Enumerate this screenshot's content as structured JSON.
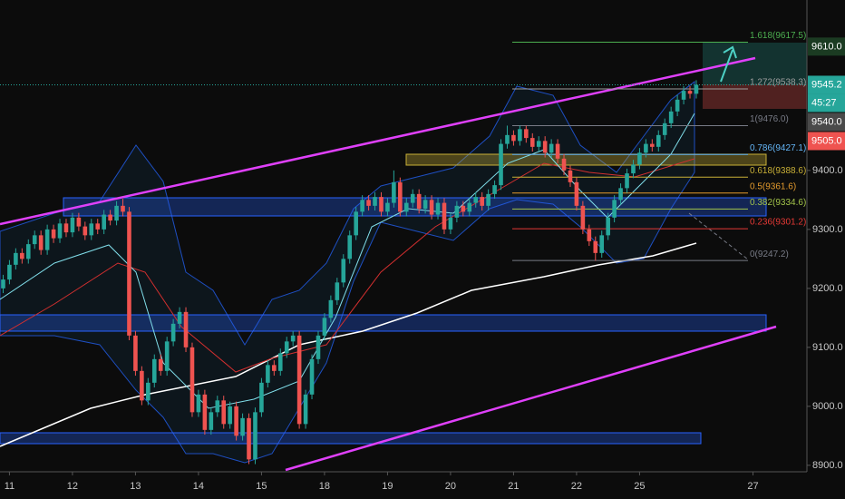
{
  "chart_data": {
    "type": "candlestick",
    "categories": [
      null,
      "11",
      null,
      null,
      null,
      null,
      null,
      null,
      null,
      null,
      null,
      "12",
      null,
      null,
      null,
      null,
      null,
      null,
      null,
      null,
      null,
      "13",
      null,
      null,
      null,
      null,
      null,
      null,
      null,
      null,
      null,
      "14",
      null,
      null,
      null,
      null,
      null,
      null,
      null,
      null,
      null,
      "15",
      null,
      null,
      null,
      null,
      null,
      null,
      null,
      null,
      null,
      "18",
      null,
      null,
      null,
      null,
      null,
      null,
      null,
      null,
      null,
      "19",
      null,
      null,
      null,
      null,
      null,
      null,
      null,
      null,
      null,
      "20",
      null,
      null,
      null,
      null,
      null,
      null,
      null,
      null,
      null,
      "21",
      null,
      null,
      null,
      null,
      null,
      null,
      null,
      null,
      null,
      "22",
      null,
      null,
      null,
      null,
      null,
      null,
      null,
      null,
      null,
      "25",
      null,
      null,
      null,
      null,
      null,
      null,
      null,
      null,
      null,
      null,
      null,
      null,
      null,
      null,
      null,
      null,
      null,
      "27",
      null,
      null,
      null,
      null,
      null,
      null,
      null,
      null
    ],
    "open": [
      9200,
      9215,
      9240,
      9260,
      9250,
      9275,
      9290,
      9265,
      9300,
      9285,
      9310,
      9295,
      9320,
      9305,
      9290,
      9310,
      9300,
      9325,
      9315,
      9340,
      9330,
      9120,
      9060,
      9010,
      9040,
      9080,
      9060,
      9110,
      9140,
      9160,
      9100,
      8990,
      9020,
      8960,
      8990,
      9010,
      8970,
      9000,
      8950,
      8980,
      8910,
      8990,
      9040,
      9070,
      9060,
      9090,
      9110,
      9120,
      8970,
      9020,
      9080,
      9120,
      9150,
      9180,
      9210,
      9250,
      9290,
      9330,
      9350,
      9340,
      9355,
      9330,
      9345,
      9380,
      9330,
      9345,
      9360,
      9335,
      9350,
      9325,
      9345,
      9300,
      9320,
      9340,
      9330,
      9345,
      9355,
      9340,
      9360,
      9375,
      9445,
      9460,
      9450,
      9470,
      9455,
      9440,
      9450,
      9430,
      9445,
      9420,
      9400,
      9380,
      9340,
      9300,
      9280,
      9260,
      9290,
      9320,
      9350,
      9370,
      9395,
      9410,
      9430,
      9445,
      9440,
      9460,
      9480,
      9500,
      9520,
      9535,
      9530,
      null,
      null,
      null,
      null,
      null,
      null,
      null,
      null,
      null,
      null,
      null,
      null,
      null,
      null,
      null,
      null,
      null
    ],
    "high": [
      9223,
      9248,
      9268,
      9268,
      9283,
      9298,
      9298,
      9308,
      9308,
      9318,
      9318,
      9328,
      9328,
      9313,
      9318,
      9318,
      9333,
      9333,
      9348,
      9352,
      9338,
      9128,
      9068,
      9048,
      9088,
      9088,
      9118,
      9148,
      9168,
      9168,
      9108,
      9028,
      9028,
      8998,
      9018,
      9018,
      9008,
      9008,
      8988,
      8988,
      8998,
      9048,
      9078,
      9078,
      9098,
      9118,
      9128,
      9128,
      9028,
      9088,
      9128,
      9158,
      9188,
      9218,
      9258,
      9298,
      9338,
      9358,
      9358,
      9363,
      9363,
      9353,
      9400,
      9388,
      9353,
      9368,
      9368,
      9358,
      9358,
      9353,
      9353,
      9328,
      9348,
      9348,
      9353,
      9363,
      9363,
      9368,
      9383,
      9453,
      9476,
      9468,
      9476,
      9476,
      9463,
      9458,
      9458,
      9453,
      9453,
      9428,
      9408,
      9388,
      9348,
      9308,
      9288,
      9298,
      9328,
      9358,
      9378,
      9403,
      9418,
      9438,
      9453,
      9453,
      9468,
      9488,
      9508,
      9528,
      9543,
      9543,
      9553,
      null,
      null,
      null,
      null,
      null,
      null,
      null,
      null,
      null,
      null,
      null,
      null,
      null,
      null,
      null,
      null,
      null
    ],
    "low": [
      9192,
      9207,
      9232,
      9242,
      9242,
      9267,
      9257,
      9257,
      9277,
      9277,
      9287,
      9287,
      9297,
      9282,
      9282,
      9292,
      9292,
      9307,
      9307,
      9322,
      9112,
      9052,
      9002,
      9002,
      9032,
      9052,
      9052,
      9102,
      9132,
      9092,
      8982,
      8982,
      8952,
      8952,
      8982,
      8962,
      8962,
      8942,
      8942,
      8902,
      8902,
      8982,
      9032,
      9052,
      9052,
      9082,
      9102,
      8962,
      8962,
      9012,
      9072,
      9112,
      9142,
      9172,
      9202,
      9242,
      9282,
      9322,
      9332,
      9332,
      9322,
      9322,
      9337,
      9322,
      9322,
      9337,
      9327,
      9327,
      9317,
      9317,
      9292,
      9292,
      9312,
      9322,
      9322,
      9337,
      9332,
      9332,
      9352,
      9367,
      9437,
      9442,
      9442,
      9447,
      9432,
      9432,
      9422,
      9422,
      9412,
      9392,
      9372,
      9332,
      9292,
      9272,
      9247,
      9252,
      9282,
      9312,
      9342,
      9362,
      9387,
      9402,
      9422,
      9432,
      9432,
      9452,
      9472,
      9492,
      9512,
      9522,
      9522,
      null,
      null,
      null,
      null,
      null,
      null,
      null,
      null,
      null,
      null,
      null,
      null,
      null,
      null,
      null,
      null,
      null
    ],
    "close": [
      9215,
      9240,
      9260,
      9250,
      9275,
      9290,
      9265,
      9300,
      9285,
      9310,
      9295,
      9320,
      9305,
      9290,
      9310,
      9300,
      9325,
      9315,
      9340,
      9330,
      9120,
      9060,
      9010,
      9040,
      9080,
      9060,
      9110,
      9140,
      9160,
      9100,
      8990,
      9020,
      8960,
      8990,
      9010,
      8970,
      9000,
      8950,
      8980,
      8910,
      8990,
      9040,
      9070,
      9060,
      9090,
      9110,
      9120,
      8970,
      9020,
      9080,
      9120,
      9150,
      9180,
      9210,
      9250,
      9290,
      9330,
      9350,
      9340,
      9355,
      9330,
      9345,
      9380,
      9330,
      9345,
      9360,
      9335,
      9350,
      9325,
      9345,
      9300,
      9320,
      9340,
      9330,
      9345,
      9355,
      9340,
      9360,
      9375,
      9445,
      9460,
      9450,
      9470,
      9455,
      9440,
      9450,
      9430,
      9445,
      9420,
      9400,
      9380,
      9340,
      9300,
      9280,
      9260,
      9290,
      9320,
      9350,
      9370,
      9395,
      9410,
      9430,
      9445,
      9440,
      9460,
      9480,
      9500,
      9520,
      9535,
      9530,
      9545.2,
      null,
      null,
      null,
      null,
      null,
      null,
      null,
      null,
      null,
      null,
      null,
      null,
      null,
      null,
      null,
      null,
      null
    ],
    "up_color": "#26a69a",
    "down_color": "#ef5350",
    "ylim": [
      8889,
      9689
    ],
    "yticks": [
      {
        "value": 8900,
        "label": "8900.0"
      },
      {
        "value": 9000,
        "label": "9000.0"
      },
      {
        "value": 9100,
        "label": "9100.0"
      },
      {
        "value": 9200,
        "label": "9200.0"
      },
      {
        "value": 9300,
        "label": "9300.0"
      },
      {
        "value": 9400,
        "label": "9400.0"
      }
    ],
    "fib_levels": [
      {
        "value": 9617.5,
        "label": "1.618(9617.5)",
        "color": "#4caf50"
      },
      {
        "value": 9538.3,
        "label": "1.272(9538.3)",
        "color": "#9e9e9e"
      },
      {
        "value": 9476.0,
        "label": "1(9476.0)",
        "color": "#787b86"
      },
      {
        "value": 9427.1,
        "label": "0.786(9427.1)",
        "color": "#64b5f6"
      },
      {
        "value": 9388.6,
        "label": "0.618(9388.6)",
        "color": "#c9b037"
      },
      {
        "value": 9361.6,
        "label": "0.5(9361.6)",
        "color": "#e39a2d"
      },
      {
        "value": 9334.6,
        "label": "0.382(9334.6)",
        "color": "#a3c44a"
      },
      {
        "value": 9301.2,
        "label": "0.236(9301.2)",
        "color": "#e53935"
      },
      {
        "value": 9247.2,
        "label": "0(9247.2)",
        "color": "#787b86"
      }
    ],
    "price_labels": [
      {
        "value": 9610.0,
        "label": "9610.0",
        "color": "#1b3b22"
      },
      {
        "value": 9545.2,
        "label": "9545.2",
        "color": "#26a69a"
      },
      {
        "value": 9540.0,
        "label": "9540.0",
        "color": "#4a4a4a"
      },
      {
        "value": 9505.0,
        "label": "9505.0",
        "color": "#ef5350"
      }
    ],
    "countdown": "45:27"
  }
}
